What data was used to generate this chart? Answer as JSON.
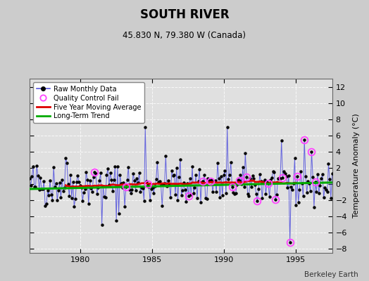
{
  "title": "SOUTH RIVER",
  "subtitle": "45.830 N, 79.380 W (Canada)",
  "ylabel": "Temperature Anomaly (°C)",
  "credit": "Berkeley Earth",
  "xlim": [
    1976.5,
    1997.5
  ],
  "ylim": [
    -8.5,
    13
  ],
  "yticks": [
    -8,
    -6,
    -4,
    -2,
    0,
    2,
    4,
    6,
    8,
    10,
    12
  ],
  "xticks": [
    1980,
    1985,
    1990,
    1995
  ],
  "bg_color": "#cccccc",
  "plot_bg_color": "#e0e0e0",
  "raw_color": "#5555dd",
  "raw_dot_color": "#000000",
  "qc_color": "#ff44ff",
  "ma_color": "#dd0000",
  "trend_color": "#00aa00",
  "seed": 42,
  "n_months": 252,
  "start_year": 1976.5,
  "trend_slope": 0.038,
  "trend_intercept": -0.25
}
